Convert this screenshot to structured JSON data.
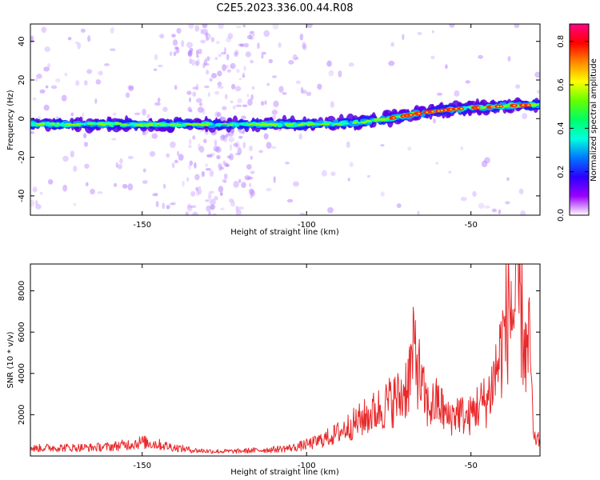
{
  "title": "C2E5.2023.336.00.44.R08",
  "chart_data": [
    {
      "type": "heatmap",
      "xlabel": "Height of straight line (km)",
      "ylabel": "Frequency (Hz)",
      "xlim": [
        -184,
        -29
      ],
      "ylim": [
        -50,
        49
      ],
      "x_ticks": [
        -150,
        -100,
        -50
      ],
      "y_ticks": [
        -40,
        -20,
        0,
        20,
        40
      ],
      "ridge": {
        "x": [
          -184,
          -160,
          -140,
          -120,
          -100,
          -85,
          -75,
          -65,
          -55,
          -45,
          -35,
          -30
        ],
        "frequency": [
          -3,
          -3,
          -3,
          -3,
          -3,
          -2,
          0,
          3,
          5,
          6,
          7,
          7
        ]
      },
      "colorbar": {
        "label": "Normalized spectral amplitude",
        "range": [
          0,
          0.88
        ],
        "ticks": [
          "0.0",
          "0.2",
          "0.4",
          "0.6",
          "0.8"
        ],
        "colors": [
          "#ffffff",
          "#9a00ff",
          "#2a00ff",
          "#0077ff",
          "#00ffdd",
          "#00ff66",
          "#66ff00",
          "#ffff00",
          "#ff8800",
          "#ff0000",
          "#ff0088"
        ]
      }
    },
    {
      "type": "line",
      "xlabel": "Height of straight line (km)",
      "ylabel": "SNR (10 * v/v)",
      "xlim": [
        -184,
        -29
      ],
      "ylim": [
        0,
        9300
      ],
      "x_ticks": [
        -150,
        -100,
        -50
      ],
      "y_ticks": [
        2000,
        4000,
        6000,
        8000
      ],
      "color": "#e8282a",
      "series": [
        {
          "x": [
            -184,
            -178,
            -172,
            -166,
            -160,
            -155,
            -150,
            -146,
            -140,
            -134,
            -128,
            -122,
            -116,
            -110,
            -104,
            -98,
            -92,
            -88,
            -84,
            -80,
            -77,
            -74,
            -71,
            -69,
            -67,
            -65,
            -63,
            -60,
            -57,
            -54,
            -51,
            -48,
            -45,
            -43,
            -41,
            -40,
            -38,
            -37,
            -36,
            -35,
            -34,
            -33,
            -32,
            -31,
            -30,
            -29
          ],
          "y": [
            400,
            450,
            450,
            450,
            500,
            600,
            750,
            650,
            450,
            300,
            250,
            250,
            300,
            350,
            450,
            700,
            1100,
            1500,
            1900,
            2300,
            2600,
            3000,
            3200,
            4200,
            5800,
            3600,
            2600,
            2900,
            2000,
            2400,
            2000,
            2700,
            3000,
            4200,
            5500,
            6500,
            8300,
            7400,
            9200,
            8200,
            6500,
            5200,
            6100,
            800,
            950,
            750
          ]
        }
      ]
    }
  ]
}
